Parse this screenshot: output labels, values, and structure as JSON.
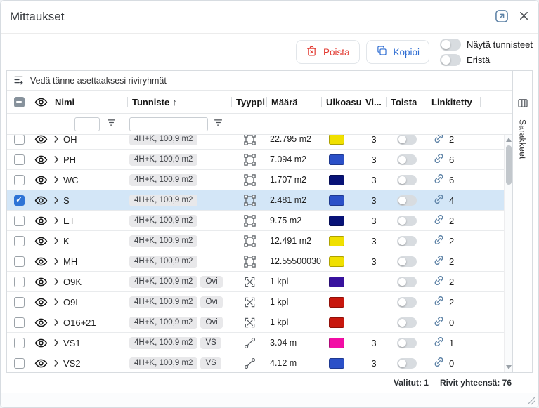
{
  "dialog": {
    "title": "Mittaukset"
  },
  "toolbar": {
    "delete": "Poista",
    "copy": "Kopioi",
    "show_ids": "Näytä tunnisteet",
    "isolate": "Eristä"
  },
  "grid": {
    "dropzone": "Vedä tänne asettaaksesi riviryhmät",
    "side_panel": "Sarakkeet",
    "sort_arrow": "↑",
    "columns": {
      "name": "Nimi",
      "identifier": "Tunniste",
      "type": "Tyyppi",
      "amount": "Määrä",
      "appearance": "Ulkoasu",
      "visibility": "Vi...",
      "repeat": "Toista",
      "linked": "Linkitetty"
    },
    "filters": {
      "name": "",
      "identifier": ""
    },
    "rows": [
      {
        "name": "OH",
        "identifier": "4H+K, 100,9 m2",
        "tag": "",
        "type": "area",
        "amount": "22.795 m2",
        "color": "#f0e000",
        "vi": "3",
        "linked": "2",
        "selected": false
      },
      {
        "name": "PH",
        "identifier": "4H+K, 100,9 m2",
        "tag": "",
        "type": "area",
        "amount": "7.094 m2",
        "color": "#2b50c8",
        "vi": "3",
        "linked": "6",
        "selected": false
      },
      {
        "name": "WC",
        "identifier": "4H+K, 100,9 m2",
        "tag": "",
        "type": "area",
        "amount": "1.707 m2",
        "color": "#071277",
        "vi": "3",
        "linked": "6",
        "selected": false
      },
      {
        "name": "S",
        "identifier": "4H+K, 100,9 m2",
        "tag": "",
        "type": "area",
        "amount": "2.481 m2",
        "color": "#2b50c8",
        "vi": "3",
        "linked": "4",
        "selected": true
      },
      {
        "name": "ET",
        "identifier": "4H+K, 100,9 m2",
        "tag": "",
        "type": "area",
        "amount": "9.75 m2",
        "color": "#071277",
        "vi": "3",
        "linked": "2",
        "selected": false
      },
      {
        "name": "K",
        "identifier": "4H+K, 100,9 m2",
        "tag": "",
        "type": "area",
        "amount": "12.491 m2",
        "color": "#f0e000",
        "vi": "3",
        "linked": "2",
        "selected": false
      },
      {
        "name": "MH",
        "identifier": "4H+K, 100,9 m2",
        "tag": "",
        "type": "area",
        "amount": "12.55500030",
        "color": "#f0e000",
        "vi": "3",
        "linked": "2",
        "selected": false
      },
      {
        "name": "O9K",
        "identifier": "4H+K, 100,9 m2",
        "tag": "Ovi",
        "type": "door",
        "amount": "1 kpl",
        "color": "#38129e",
        "vi": "",
        "linked": "2",
        "selected": false
      },
      {
        "name": "O9L",
        "identifier": "4H+K, 100,9 m2",
        "tag": "Ovi",
        "type": "door",
        "amount": "1 kpl",
        "color": "#c8170d",
        "vi": "",
        "linked": "2",
        "selected": false
      },
      {
        "name": "O16+21",
        "identifier": "4H+K, 100,9 m2",
        "tag": "Ovi",
        "type": "door",
        "amount": "1 kpl",
        "color": "#c8170d",
        "vi": "",
        "linked": "0",
        "selected": false
      },
      {
        "name": "VS1",
        "identifier": "4H+K, 100,9 m2",
        "tag": "VS",
        "type": "wall",
        "amount": "3.04 m",
        "color": "#f20da5",
        "vi": "3",
        "linked": "1",
        "selected": false
      },
      {
        "name": "VS2",
        "identifier": "4H+K, 100,9 m2",
        "tag": "VS",
        "type": "wall",
        "amount": "4.12 m",
        "color": "#2b50c8",
        "vi": "3",
        "linked": "0",
        "selected": false
      }
    ]
  },
  "footer": {
    "selected": "Valitut: 1",
    "total": "Rivit yhteensä: 76"
  },
  "colors": {
    "delete_accent": "#e23b32",
    "copy_accent": "#2d6cd2",
    "selected_row": "#d3e6f7",
    "checkbox_checked": "#2e74d6"
  }
}
